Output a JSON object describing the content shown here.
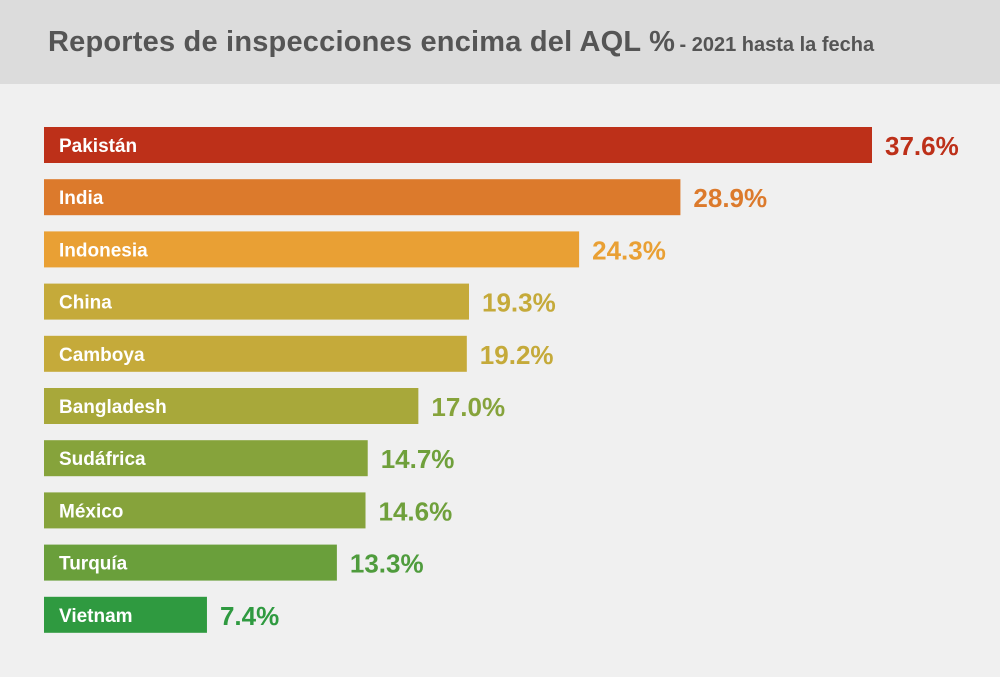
{
  "header": {
    "title": "Reportes de inspecciones encima del AQL %",
    "subtitle": "- 2021 hasta la fecha"
  },
  "chart_data": {
    "type": "bar",
    "orientation": "horizontal",
    "title": "Reportes de inspecciones encima del AQL %",
    "subtitle": "- 2021 hasta la fecha",
    "categories": [
      "Pakistán",
      "India",
      "Indonesia",
      "China",
      "Camboya",
      "Bangladesh",
      "Sudáfrica",
      "México",
      "Turquía",
      "Vietnam"
    ],
    "values": [
      37.6,
      28.9,
      24.3,
      19.3,
      19.2,
      17.0,
      14.7,
      14.6,
      13.3,
      7.4
    ],
    "labels": [
      "37.6%",
      "28.9%",
      "24.3%",
      "19.3%",
      "19.2%",
      "17.0%",
      "14.7%",
      "14.6%",
      "13.3%",
      "7.4%"
    ],
    "colors": [
      "#bd3019",
      "#dc7a2c",
      "#e9a034",
      "#c5aa3a",
      "#c5aa3a",
      "#a8a83a",
      "#86a33b",
      "#86a33b",
      "#6a9f3b",
      "#2f9a40"
    ],
    "label_colors": [
      "#bd3019",
      "#dc7a2c",
      "#e9a034",
      "#c5aa3a",
      "#c5aa3a",
      "#86a33b",
      "#6fa03b",
      "#6fa03b",
      "#4f9c3d",
      "#2f9a40"
    ],
    "xlim": [
      0,
      37.6
    ],
    "grid": false,
    "legend": "none"
  }
}
